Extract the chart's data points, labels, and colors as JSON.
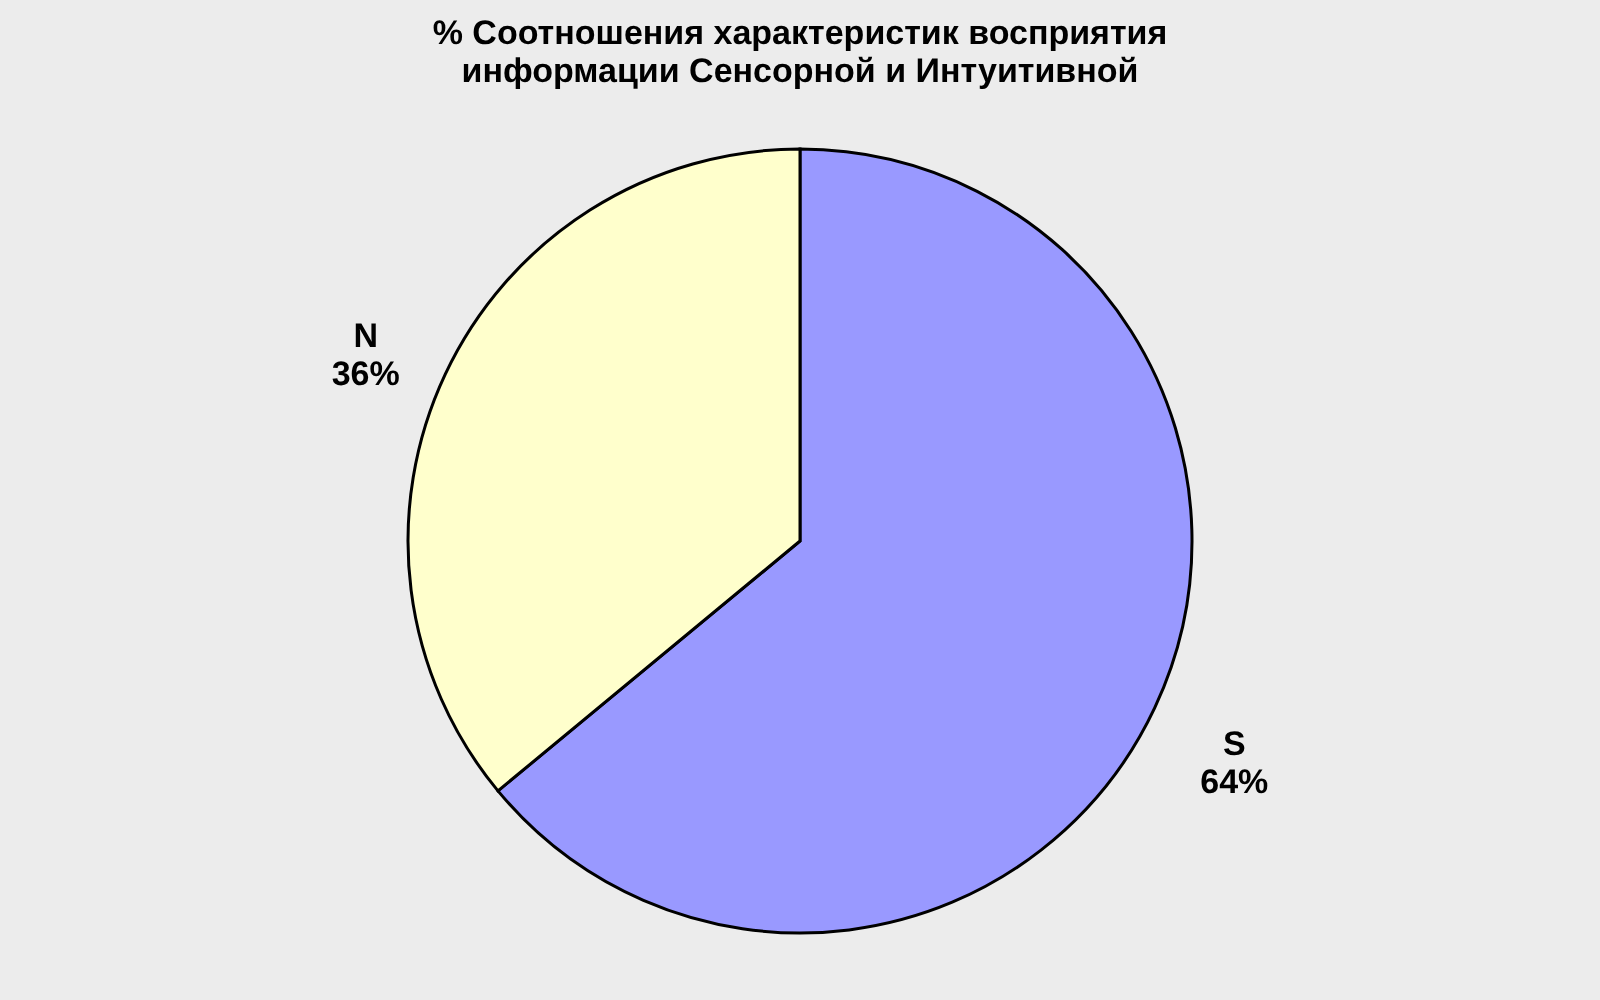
{
  "chart_data": {
    "type": "pie",
    "title": "% Соотношения характеристик восприятия\nинформации Сенсорной и Интуитивной",
    "categories": [
      "S",
      "N"
    ],
    "values": [
      64,
      36
    ],
    "colors": [
      "#9999ff",
      "#ffffcc"
    ],
    "value_labels": [
      "64%",
      "36%"
    ],
    "legend": false
  }
}
